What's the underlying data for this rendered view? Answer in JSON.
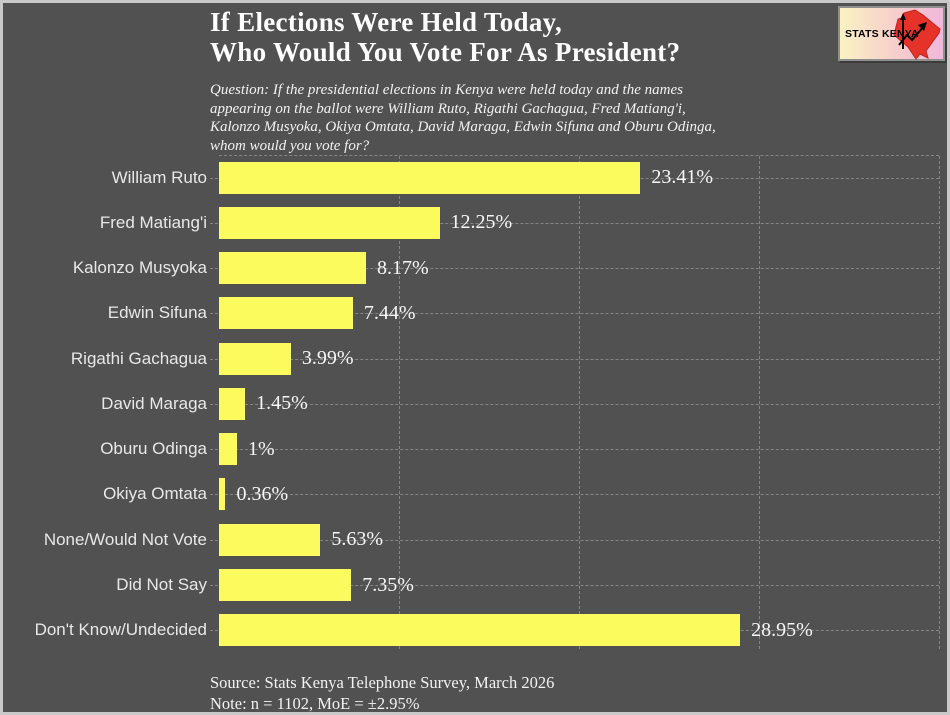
{
  "header": {
    "title": "If Elections Were Held Today,\nWho Would You Vote For As President?",
    "subtitle": "Question: If the presidential elections in Kenya were held today and the names\nappearing on the ballot were William Ruto, Rigathi Gachagua, Fred Matiang'i,\nKalonzo Musyoka, Okiya Omtata, David Maraga, Edwin Sifuna and Oburu Odinga,\nwhom would you vote for?"
  },
  "logo": {
    "text": "STATS KENYA"
  },
  "chart_data": {
    "type": "bar",
    "orientation": "horizontal",
    "title": "If Elections Were Held Today, Who Would You Vote For As President?",
    "categories": [
      "William Ruto",
      "Fred Matiang'i",
      "Kalonzo Musyoka",
      "Edwin Sifuna",
      "Rigathi Gachagua",
      "David Maraga",
      "Oburu Odinga",
      "Okiya Omtata",
      "None/Would Not Vote",
      "Did Not Say",
      "Don't Know/Undecided"
    ],
    "values": [
      23.41,
      12.25,
      8.17,
      7.44,
      3.99,
      1.45,
      1,
      0.36,
      5.63,
      7.35,
      28.95
    ],
    "value_labels": [
      "23.41%",
      "12.25%",
      "8.17%",
      "7.44%",
      "3.99%",
      "1.45%",
      "1%",
      "0.36%",
      "5.63%",
      "7.35%",
      "28.95%"
    ],
    "xlim": [
      0,
      40
    ],
    "gridline_percents": [
      10,
      20,
      30,
      40
    ],
    "grid": "dashed",
    "legend": "none",
    "bar_color": "#fbfb5e",
    "background_color": "#515151",
    "label_color": "#e8e8e8",
    "value_color": "#f7f7f7"
  },
  "footer": {
    "source": "Source: Stats Kenya Telephone Survey, March 2026",
    "note": "Note: n = 1102, MoE = ±2.95%"
  }
}
